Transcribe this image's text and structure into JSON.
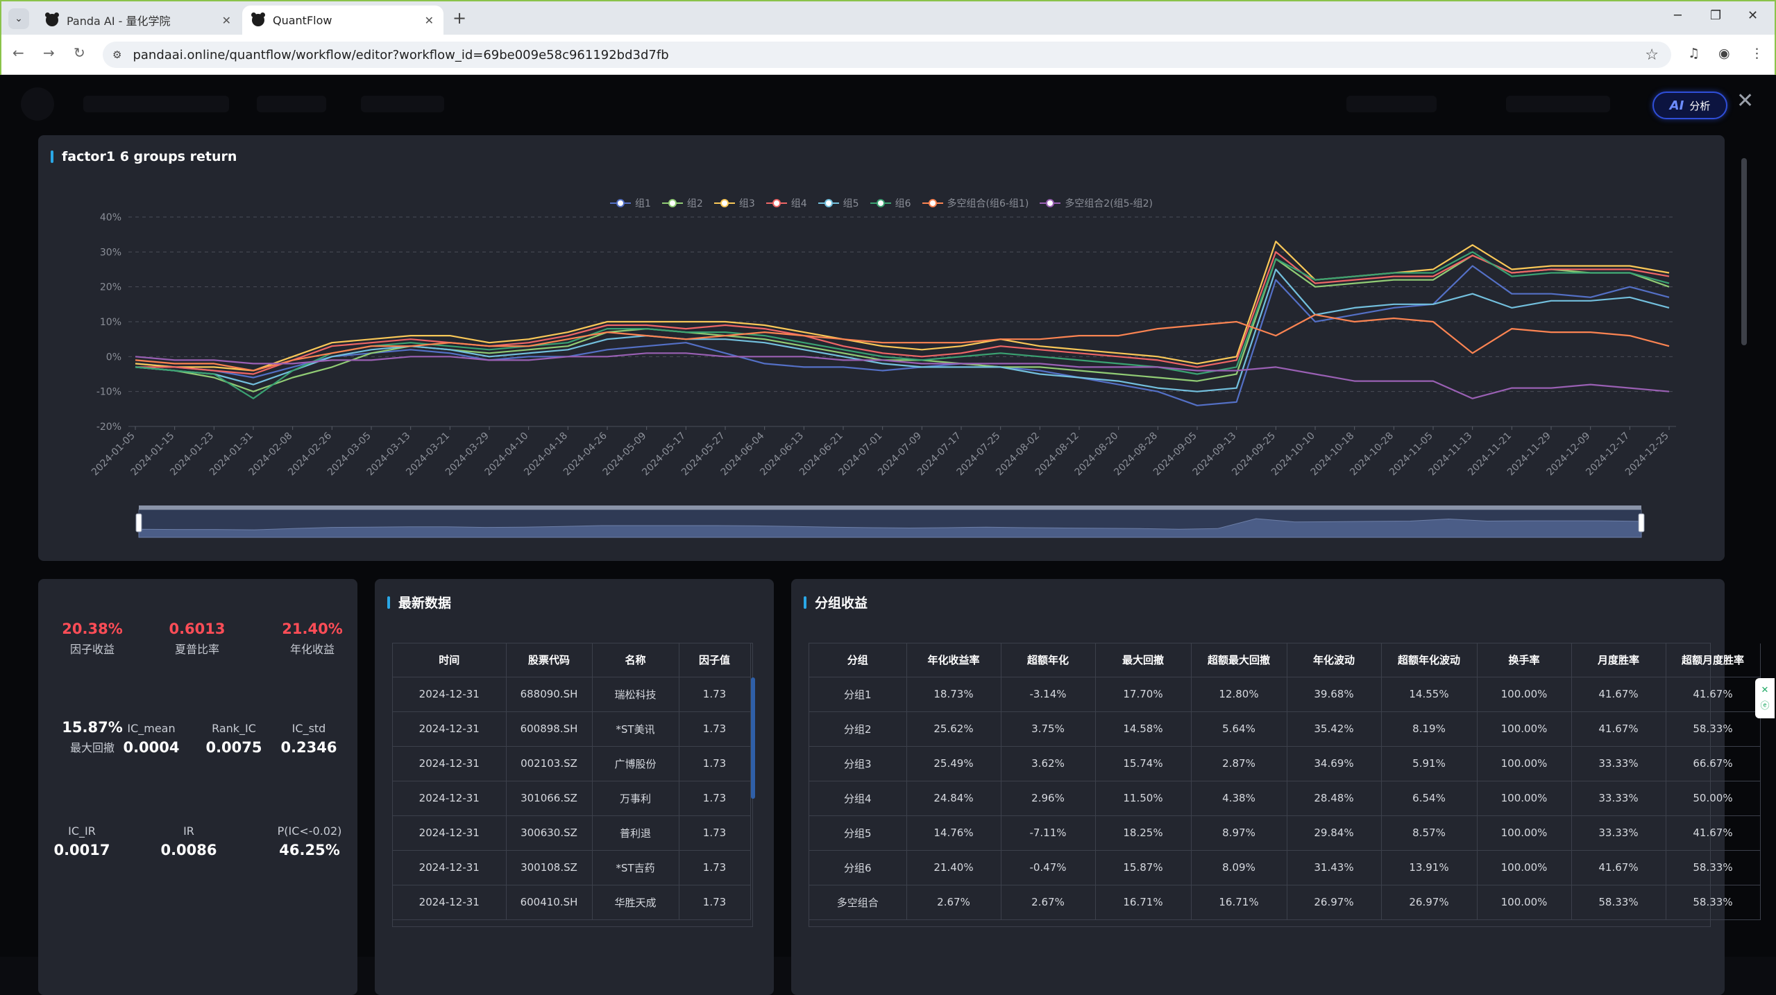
{
  "browser": {
    "tabs": [
      {
        "title": "Panda AI - 量化学院",
        "active": false
      },
      {
        "title": "QuantFlow",
        "active": true
      }
    ],
    "url": "pandaai.online/quantflow/workflow/editor?workflow_id=69be009e58c961192bd3d7fb"
  },
  "toolbar": {
    "ai_label": "AI",
    "analysis_label": "分析"
  },
  "chart_data": {
    "type": "line",
    "title": "factor1 6 groups return",
    "ylim": [
      -20,
      40
    ],
    "y_ticks": [
      "40%",
      "30%",
      "20%",
      "10%",
      "0%",
      "-10%",
      "-20%"
    ],
    "grid": true,
    "legend_position": "top-center",
    "x_tick_labels": [
      "2024-01-05",
      "2024-01-15",
      "2024-01-23",
      "2024-01-31",
      "2024-02-08",
      "2024-02-26",
      "2024-03-05",
      "2024-03-13",
      "2024-03-21",
      "2024-03-29",
      "2024-04-10",
      "2024-04-18",
      "2024-04-26",
      "2024-05-09",
      "2024-05-17",
      "2024-05-27",
      "2024-06-04",
      "2024-06-13",
      "2024-06-21",
      "2024-07-01",
      "2024-07-09",
      "2024-07-17",
      "2024-07-25",
      "2024-08-02",
      "2024-08-12",
      "2024-08-20",
      "2024-08-28",
      "2024-09-05",
      "2024-09-13",
      "2024-09-25",
      "2024-10-10",
      "2024-10-18",
      "2024-10-28",
      "2024-11-05",
      "2024-11-13",
      "2024-11-21",
      "2024-11-29",
      "2024-12-09",
      "2024-12-17",
      "2024-12-25"
    ],
    "series": [
      {
        "name": "组1",
        "color": "#5470c6",
        "values": [
          -2,
          -3,
          -4,
          -6,
          -3,
          0,
          1,
          2,
          1,
          -1,
          0,
          0,
          2,
          3,
          4,
          1,
          -2,
          -3,
          -3,
          -4,
          -3,
          -2,
          -3,
          -4,
          -6,
          -8,
          -10,
          -14,
          -13,
          22,
          10,
          12,
          14,
          15,
          26,
          18,
          18,
          17,
          20,
          17
        ]
      },
      {
        "name": "组2",
        "color": "#91cc75",
        "values": [
          -3,
          -4,
          -6,
          -10,
          -6,
          -3,
          1,
          3,
          2,
          1,
          2,
          3,
          7,
          8,
          7,
          6,
          5,
          3,
          1,
          -1,
          -1,
          -2,
          -3,
          -3,
          -4,
          -5,
          -6,
          -7,
          -5,
          28,
          20,
          21,
          22,
          22,
          29,
          24,
          25,
          24,
          24,
          20
        ]
      },
      {
        "name": "组3",
        "color": "#fac858",
        "values": [
          -2,
          -3,
          -3,
          -4,
          0,
          4,
          5,
          6,
          6,
          4,
          5,
          7,
          10,
          10,
          10,
          10,
          9,
          7,
          5,
          3,
          2,
          3,
          5,
          3,
          2,
          1,
          0,
          -2,
          0,
          33,
          22,
          23,
          24,
          25,
          32,
          25,
          26,
          26,
          26,
          24
        ]
      },
      {
        "name": "组4",
        "color": "#ee6666",
        "values": [
          -3,
          -3,
          -4,
          -5,
          -1,
          3,
          4,
          5,
          4,
          3,
          4,
          6,
          9,
          9,
          8,
          9,
          8,
          6,
          3,
          1,
          0,
          1,
          3,
          2,
          1,
          0,
          -1,
          -3,
          -1,
          30,
          21,
          22,
          23,
          23,
          29,
          24,
          25,
          25,
          25,
          23
        ]
      },
      {
        "name": "组5",
        "color": "#73c0de",
        "values": [
          -3,
          -4,
          -5,
          -8,
          -4,
          0,
          2,
          3,
          2,
          0,
          1,
          2,
          5,
          6,
          5,
          5,
          4,
          2,
          0,
          -2,
          -3,
          -3,
          -3,
          -5,
          -6,
          -7,
          -9,
          -10,
          -9,
          25,
          12,
          14,
          15,
          15,
          18,
          14,
          16,
          16,
          17,
          14
        ]
      },
      {
        "name": "组6",
        "color": "#3ba272",
        "values": [
          -3,
          -4,
          -5,
          -12,
          -4,
          1,
          3,
          4,
          3,
          2,
          3,
          4,
          8,
          8,
          7,
          7,
          6,
          4,
          2,
          0,
          -1,
          0,
          1,
          0,
          -1,
          -2,
          -3,
          -5,
          -3,
          28,
          22,
          23,
          24,
          24,
          30,
          23,
          24,
          24,
          24,
          21
        ]
      },
      {
        "name": "多空组合(组6-组1)",
        "color": "#fc8452",
        "values": [
          -1,
          -2,
          -2,
          -4,
          -1,
          1,
          3,
          3,
          4,
          3,
          3,
          5,
          7,
          6,
          5,
          6,
          7,
          6,
          5,
          4,
          4,
          4,
          5,
          5,
          6,
          6,
          8,
          9,
          10,
          6,
          12,
          10,
          11,
          10,
          1,
          8,
          7,
          7,
          6,
          3
        ]
      },
      {
        "name": "多空组合2(组5-组2)",
        "color": "#9a60b4",
        "values": [
          0,
          -1,
          -1,
          -2,
          -2,
          -1,
          -1,
          0,
          0,
          -1,
          -1,
          0,
          0,
          1,
          1,
          0,
          0,
          0,
          -1,
          -1,
          -2,
          -2,
          -2,
          -2,
          -3,
          -3,
          -3,
          -4,
          -4,
          -3,
          -5,
          -7,
          -7,
          -7,
          -12,
          -9,
          -9,
          -8,
          -9,
          -10
        ]
      }
    ]
  },
  "stats": {
    "factor_return": {
      "value": "20.38%",
      "label": "因子收益"
    },
    "sharpe": {
      "value": "0.6013",
      "label": "夏普比率"
    },
    "annual_return": {
      "value": "21.40%",
      "label": "年化收益"
    },
    "max_drawdown": {
      "value": "15.87%",
      "label": "最大回撤"
    },
    "ic_mean": {
      "label": "IC_mean",
      "value": "0.0004"
    },
    "rank_ic": {
      "label": "Rank_IC",
      "value": "0.0075"
    },
    "ic_std": {
      "label": "IC_std",
      "value": "0.2346"
    },
    "ic_ir": {
      "label": "IC_IR",
      "value": "0.0017"
    },
    "ir": {
      "label": "IR",
      "value": "0.0086"
    },
    "p_ic": {
      "label": "P(IC<-0.02)",
      "value": "46.25%"
    }
  },
  "latest": {
    "title": "最新数据",
    "headers": [
      "时间",
      "股票代码",
      "名称",
      "因子值"
    ],
    "rows": [
      [
        "2024-12-31",
        "688090.SH",
        "瑞松科技",
        "1.73"
      ],
      [
        "2024-12-31",
        "600898.SH",
        "*ST美讯",
        "1.73"
      ],
      [
        "2024-12-31",
        "002103.SZ",
        "广博股份",
        "1.73"
      ],
      [
        "2024-12-31",
        "301066.SZ",
        "万事利",
        "1.73"
      ],
      [
        "2024-12-31",
        "300630.SZ",
        "普利退",
        "1.73"
      ],
      [
        "2024-12-31",
        "300108.SZ",
        "*ST吉药",
        "1.73"
      ],
      [
        "2024-12-31",
        "600410.SH",
        "华胜天成",
        "1.73"
      ]
    ]
  },
  "groups": {
    "title": "分组收益",
    "headers": [
      "分组",
      "年化收益率",
      "超额年化",
      "最大回撤",
      "超额最大回撤",
      "年化波动",
      "超额年化波动",
      "换手率",
      "月度胜率",
      "超额月度胜率"
    ],
    "rows": [
      [
        "分组1",
        "18.73%",
        "-3.14%",
        "17.70%",
        "12.80%",
        "39.68%",
        "14.55%",
        "100.00%",
        "41.67%",
        "41.67%"
      ],
      [
        "分组2",
        "25.62%",
        "3.75%",
        "14.58%",
        "5.64%",
        "35.42%",
        "8.19%",
        "100.00%",
        "41.67%",
        "58.33%"
      ],
      [
        "分组3",
        "25.49%",
        "3.62%",
        "15.74%",
        "2.87%",
        "34.69%",
        "5.91%",
        "100.00%",
        "33.33%",
        "66.67%"
      ],
      [
        "分组4",
        "24.84%",
        "2.96%",
        "11.50%",
        "4.38%",
        "28.48%",
        "6.54%",
        "100.00%",
        "33.33%",
        "50.00%"
      ],
      [
        "分组5",
        "14.76%",
        "-7.11%",
        "18.25%",
        "8.97%",
        "29.84%",
        "8.57%",
        "100.00%",
        "33.33%",
        "41.67%"
      ],
      [
        "分组6",
        "21.40%",
        "-0.47%",
        "15.87%",
        "8.09%",
        "31.43%",
        "13.91%",
        "100.00%",
        "41.67%",
        "58.33%"
      ],
      [
        "多空组合",
        "2.67%",
        "2.67%",
        "16.71%",
        "16.71%",
        "26.97%",
        "26.97%",
        "100.00%",
        "58.33%",
        "58.33%"
      ]
    ]
  }
}
